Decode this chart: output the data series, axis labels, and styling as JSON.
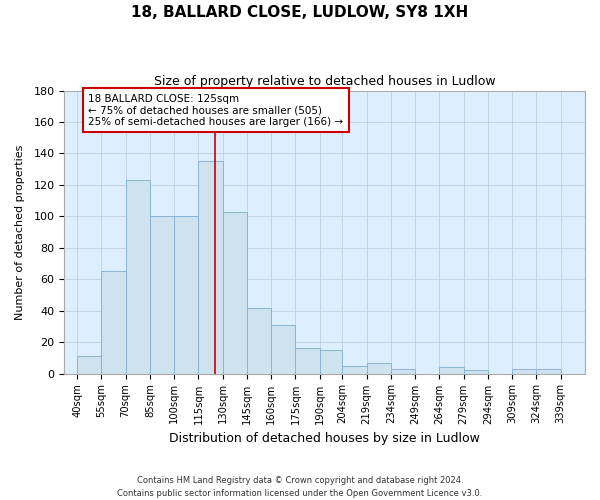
{
  "title": "18, BALLARD CLOSE, LUDLOW, SY8 1XH",
  "subtitle": "Size of property relative to detached houses in Ludlow",
  "xlabel": "Distribution of detached houses by size in Ludlow",
  "ylabel": "Number of detached properties",
  "bar_left_edges": [
    40,
    55,
    70,
    85,
    100,
    115,
    130,
    145,
    160,
    175,
    190,
    204,
    219,
    234,
    249,
    264,
    279,
    294,
    309,
    324
  ],
  "bar_heights": [
    11,
    65,
    123,
    100,
    100,
    135,
    103,
    42,
    31,
    16,
    15,
    5,
    7,
    3,
    0,
    4,
    2,
    0,
    3,
    3
  ],
  "bar_widths": [
    15,
    15,
    15,
    15,
    15,
    15,
    15,
    15,
    15,
    15,
    14,
    15,
    15,
    15,
    15,
    15,
    15,
    15,
    15,
    15
  ],
  "tick_labels": [
    "40sqm",
    "55sqm",
    "70sqm",
    "85sqm",
    "100sqm",
    "115sqm",
    "130sqm",
    "145sqm",
    "160sqm",
    "175sqm",
    "190sqm",
    "204sqm",
    "219sqm",
    "234sqm",
    "249sqm",
    "264sqm",
    "279sqm",
    "294sqm",
    "309sqm",
    "324sqm",
    "339sqm"
  ],
  "tick_positions": [
    40,
    55,
    70,
    85,
    100,
    115,
    130,
    145,
    160,
    175,
    190,
    204,
    219,
    234,
    249,
    264,
    279,
    294,
    309,
    324,
    339
  ],
  "bar_color": "#cfe2f0",
  "bar_edge_color": "#8ab4d4",
  "vline_x": 125,
  "vline_color": "#cc0000",
  "ylim": [
    0,
    180
  ],
  "annotation_line1": "18 BALLARD CLOSE: 125sqm",
  "annotation_line2": "← 75% of detached houses are smaller (505)",
  "annotation_line3": "25% of semi-detached houses are larger (166) →",
  "footer_line1": "Contains HM Land Registry data © Crown copyright and database right 2024.",
  "footer_line2": "Contains public sector information licensed under the Open Government Licence v3.0.",
  "background_color": "#ffffff",
  "plot_bg_color": "#ddeeff",
  "grid_color": "#c0d0e0"
}
